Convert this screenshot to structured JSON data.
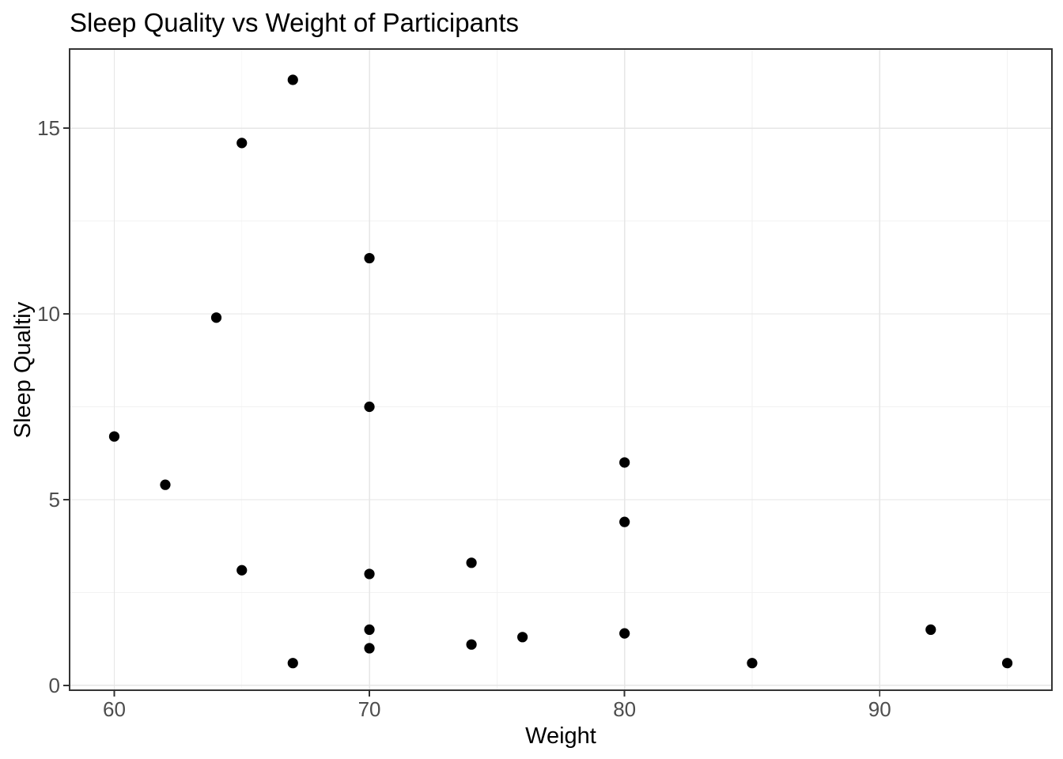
{
  "chart_data": {
    "type": "scatter",
    "title": "Sleep Quality vs Weight of Participants",
    "xlabel": "Weight",
    "ylabel": "Sleep Qualtiy",
    "xlim": [
      58.25,
      96.75
    ],
    "ylim": [
      -0.13,
      17.13
    ],
    "xticks": [
      60,
      70,
      80,
      90
    ],
    "yticks": [
      0,
      5,
      10,
      15
    ],
    "grid": "major and minor, light gray on white panel",
    "legend": "none",
    "points": [
      {
        "weight": 60,
        "quality": 6.7
      },
      {
        "weight": 62,
        "quality": 5.4
      },
      {
        "weight": 64,
        "quality": 9.9
      },
      {
        "weight": 65,
        "quality": 14.6
      },
      {
        "weight": 65,
        "quality": 3.1
      },
      {
        "weight": 67,
        "quality": 16.3
      },
      {
        "weight": 67,
        "quality": 0.6
      },
      {
        "weight": 70,
        "quality": 11.5
      },
      {
        "weight": 70,
        "quality": 7.5
      },
      {
        "weight": 70,
        "quality": 3.0
      },
      {
        "weight": 70,
        "quality": 1.5
      },
      {
        "weight": 70,
        "quality": 1.0
      },
      {
        "weight": 74,
        "quality": 3.3
      },
      {
        "weight": 74,
        "quality": 1.1
      },
      {
        "weight": 76,
        "quality": 1.3
      },
      {
        "weight": 80,
        "quality": 6.0
      },
      {
        "weight": 80,
        "quality": 4.4
      },
      {
        "weight": 80,
        "quality": 1.4
      },
      {
        "weight": 85,
        "quality": 0.6
      },
      {
        "weight": 92,
        "quality": 1.5
      },
      {
        "weight": 95,
        "quality": 0.6
      }
    ],
    "colors": {
      "point": "#000000",
      "grid_major": "#e6e6e6",
      "grid_minor": "#f2f2f2",
      "panel_border": "#343434",
      "tick_mark": "#333333",
      "tick_label": "#4d4d4d"
    }
  }
}
